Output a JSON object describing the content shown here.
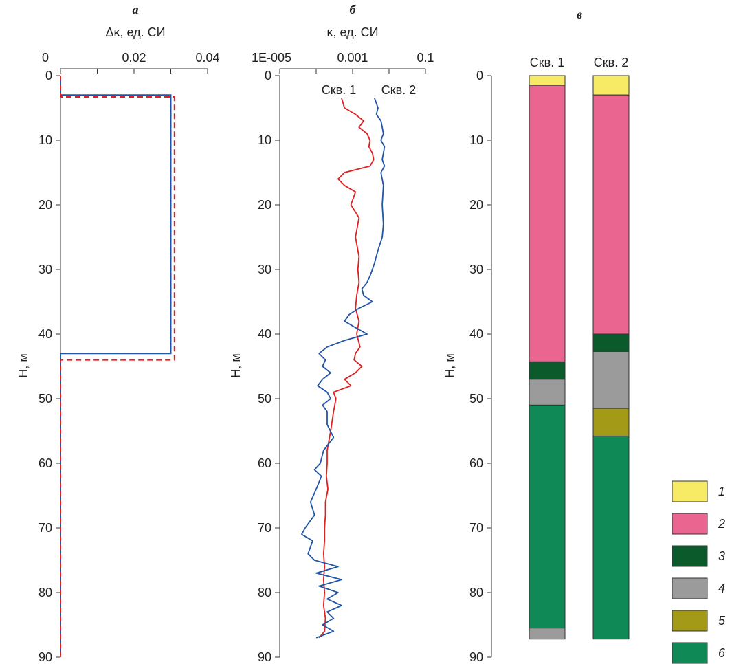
{
  "chart_data": [
    {
      "panel_label": "а",
      "type": "line",
      "xlabel": "Δκ, ед. СИ",
      "ylabel": "H, м",
      "xlim": [
        0,
        0.04
      ],
      "ylim": [
        0,
        90
      ],
      "y_inverted": true,
      "x_axis_position": "top",
      "xticks": [
        "0",
        "0.02",
        "0.04"
      ],
      "yticks": [
        "0",
        "10",
        "20",
        "30",
        "40",
        "50",
        "60",
        "70",
        "80",
        "90"
      ],
      "colors": {
        "solid": "#2155a6",
        "dashed": "#e02020"
      },
      "series": [
        {
          "style": "solid",
          "color": "#2155a6",
          "x": [
            0,
            0,
            0.03,
            0.03,
            0,
            0
          ],
          "y": [
            0,
            3,
            3,
            43,
            43,
            90
          ]
        },
        {
          "style": "dashed",
          "color": "#e02020",
          "x": [
            0,
            0,
            0.031,
            0.031,
            0,
            0
          ],
          "y": [
            0,
            3.3,
            3.3,
            44,
            44,
            90
          ]
        }
      ]
    },
    {
      "panel_label": "б",
      "type": "line",
      "xlabel": "κ, ед. СИ",
      "ylabel": "H, м",
      "x_scale": "log",
      "xlim": [
        1e-05,
        0.1
      ],
      "ylim": [
        0,
        90
      ],
      "y_inverted": true,
      "x_axis_position": "top",
      "xticks": [
        "1E-005",
        "0.001",
        "0.1"
      ],
      "yticks": [
        "0",
        "10",
        "20",
        "30",
        "40",
        "50",
        "60",
        "70",
        "80",
        "90"
      ],
      "annotations": [
        "Скв. 1",
        "Скв. 2"
      ],
      "series": [
        {
          "name": "Скв. 1",
          "color": "#e02020",
          "depth": [
            3.5,
            5,
            6,
            7,
            8,
            9,
            10,
            11,
            12,
            13,
            14,
            15,
            16,
            17,
            18,
            20,
            22,
            25,
            28,
            30,
            32,
            34,
            36,
            38,
            40,
            42,
            43,
            44,
            45,
            46,
            47,
            48,
            49,
            50,
            52,
            55,
            58,
            60,
            62,
            64,
            66,
            68,
            70,
            72,
            74,
            76,
            78,
            80,
            82,
            84,
            86,
            87
          ],
          "kappa": [
            0.0005,
            0.0006,
            0.0012,
            0.002,
            0.0015,
            0.0025,
            0.003,
            0.0028,
            0.0035,
            0.0038,
            0.003,
            0.0006,
            0.0004,
            0.0006,
            0.0012,
            0.0009,
            0.0015,
            0.0012,
            0.0015,
            0.0014,
            0.0015,
            0.0013,
            0.0012,
            0.0015,
            0.0013,
            0.0016,
            0.0012,
            0.0011,
            0.0018,
            0.0012,
            0.0006,
            0.0009,
            0.0003,
            0.00035,
            0.0003,
            0.00025,
            0.0002,
            0.0002,
            0.00019,
            0.00021,
            0.00018,
            0.00018,
            0.00017,
            0.00017,
            0.00016,
            0.00017,
            0.00016,
            0.00017,
            0.00016,
            0.00018,
            0.00017,
            0.00012
          ]
        },
        {
          "name": "Скв. 2",
          "color": "#2155a6",
          "depth": [
            3.5,
            5,
            6,
            7,
            8,
            9,
            10,
            11,
            12,
            13,
            14,
            15,
            17,
            20,
            23,
            25,
            27,
            29,
            30,
            31,
            32,
            33,
            34,
            35,
            36,
            37,
            38,
            39,
            40,
            41,
            42,
            43,
            44,
            45,
            46,
            47,
            48,
            49,
            50,
            51,
            52,
            54,
            56,
            58,
            60,
            61,
            62,
            64,
            66,
            68,
            70,
            71,
            72,
            74,
            75,
            76,
            77,
            78,
            79,
            80,
            81,
            82,
            83,
            84,
            85,
            86,
            87
          ],
          "kappa": [
            0.004,
            0.005,
            0.0045,
            0.006,
            0.0065,
            0.007,
            0.006,
            0.0075,
            0.007,
            0.0065,
            0.0075,
            0.006,
            0.007,
            0.0065,
            0.007,
            0.0065,
            0.005,
            0.004,
            0.0035,
            0.003,
            0.0025,
            0.0018,
            0.002,
            0.0035,
            0.0015,
            0.0008,
            0.0006,
            0.0012,
            0.0025,
            0.0006,
            0.0002,
            0.00012,
            0.00018,
            0.00015,
            0.00025,
            0.00015,
            0.00011,
            0.0002,
            0.00025,
            0.00015,
            0.0002,
            0.0002,
            0.0003,
            0.00016,
            0.00013,
            9e-05,
            0.00014,
            0.0001,
            7e-05,
            9e-05,
            5e-05,
            4e-05,
            8e-05,
            6e-05,
            9e-05,
            0.0004,
            0.0001,
            0.0005,
            0.00012,
            0.0004,
            0.0002,
            0.0005,
            0.0002,
            0.0003,
            0.00015,
            0.0003,
            0.0001
          ]
        }
      ]
    },
    {
      "panel_label": "в",
      "type": "bar",
      "ylabel": "H, м",
      "ylim": [
        0,
        90
      ],
      "y_inverted": true,
      "yticks": [
        "0",
        "10",
        "20",
        "30",
        "40",
        "50",
        "60",
        "70",
        "80",
        "90"
      ],
      "columns": [
        {
          "name": "Скв. 1",
          "layers": [
            {
              "top": 0,
              "bottom": 1.5,
              "class": 1
            },
            {
              "top": 1.5,
              "bottom": 44.3,
              "class": 2
            },
            {
              "top": 44.3,
              "bottom": 47,
              "class": 3
            },
            {
              "top": 47,
              "bottom": 51,
              "class": 4
            },
            {
              "top": 51,
              "bottom": 85.5,
              "class": 6
            },
            {
              "top": 85.5,
              "bottom": 87.2,
              "class": 4
            }
          ]
        },
        {
          "name": "Скв. 2",
          "layers": [
            {
              "top": 0,
              "bottom": 3,
              "class": 1
            },
            {
              "top": 3,
              "bottom": 40,
              "class": 2
            },
            {
              "top": 40,
              "bottom": 42.7,
              "class": 3
            },
            {
              "top": 42.7,
              "bottom": 51.5,
              "class": 4
            },
            {
              "top": 51.5,
              "bottom": 55.8,
              "class": 5
            },
            {
              "top": 55.8,
              "bottom": 87.2,
              "class": 6
            }
          ]
        }
      ],
      "legend": [
        {
          "label": "1",
          "color": "#f7ea64"
        },
        {
          "label": "2",
          "color": "#ea6690"
        },
        {
          "label": "3",
          "color": "#0a5a2c"
        },
        {
          "label": "4",
          "color": "#9b9b9b"
        },
        {
          "label": "5",
          "color": "#a39a17"
        },
        {
          "label": "6",
          "color": "#0f8a57"
        }
      ],
      "legend_position": "bottom-right"
    }
  ]
}
